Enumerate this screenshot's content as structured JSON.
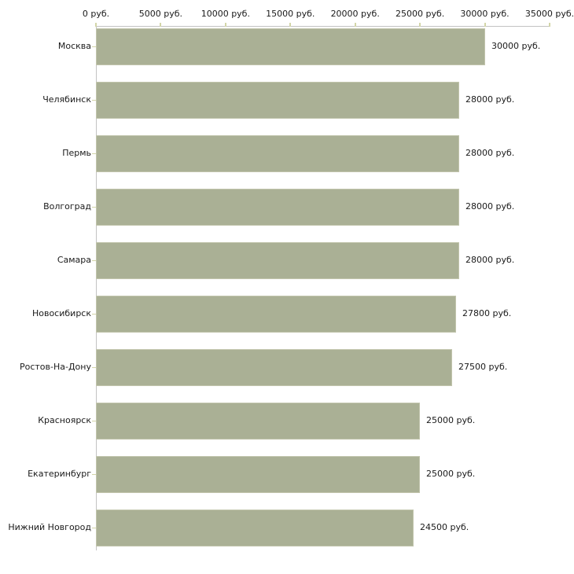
{
  "chart_data": {
    "type": "bar",
    "orientation": "horizontal",
    "title": "",
    "categories": [
      "Москва",
      "Челябинск",
      "Пермь",
      "Волгоград",
      "Самара",
      "Новосибирск",
      "Ростов-На-Дону",
      "Красноярск",
      "Екатеринбург",
      "Нижний Новгород"
    ],
    "values": [
      30000,
      28000,
      28000,
      28000,
      28000,
      27800,
      27500,
      25000,
      25000,
      24500
    ],
    "value_labels": [
      "30000 руб.",
      "28000 руб.",
      "28000 руб.",
      "28000 руб.",
      "28000 руб.",
      "27800 руб.",
      "27500 руб.",
      "25000 руб.",
      "25000 руб.",
      "24500 руб."
    ],
    "x_axis": {
      "position": "top",
      "range": [
        0,
        35000
      ],
      "ticks": [
        0,
        5000,
        10000,
        15000,
        20000,
        25000,
        30000,
        35000
      ],
      "tick_labels": [
        "0 руб.",
        "5000 руб.",
        "10000 руб.",
        "15000 руб.",
        "20000 руб.",
        "25000 руб.",
        "30000 руб.",
        "35000 руб."
      ]
    },
    "grid": false,
    "legend": false,
    "colors": {
      "bar_fill": "#aab095",
      "bar_border": "#c2c5ad",
      "axis_line": "#c3c3c3",
      "tick_mark": "#d3d5a8",
      "text": "#1a1a1a",
      "background": "#ffffff"
    }
  }
}
